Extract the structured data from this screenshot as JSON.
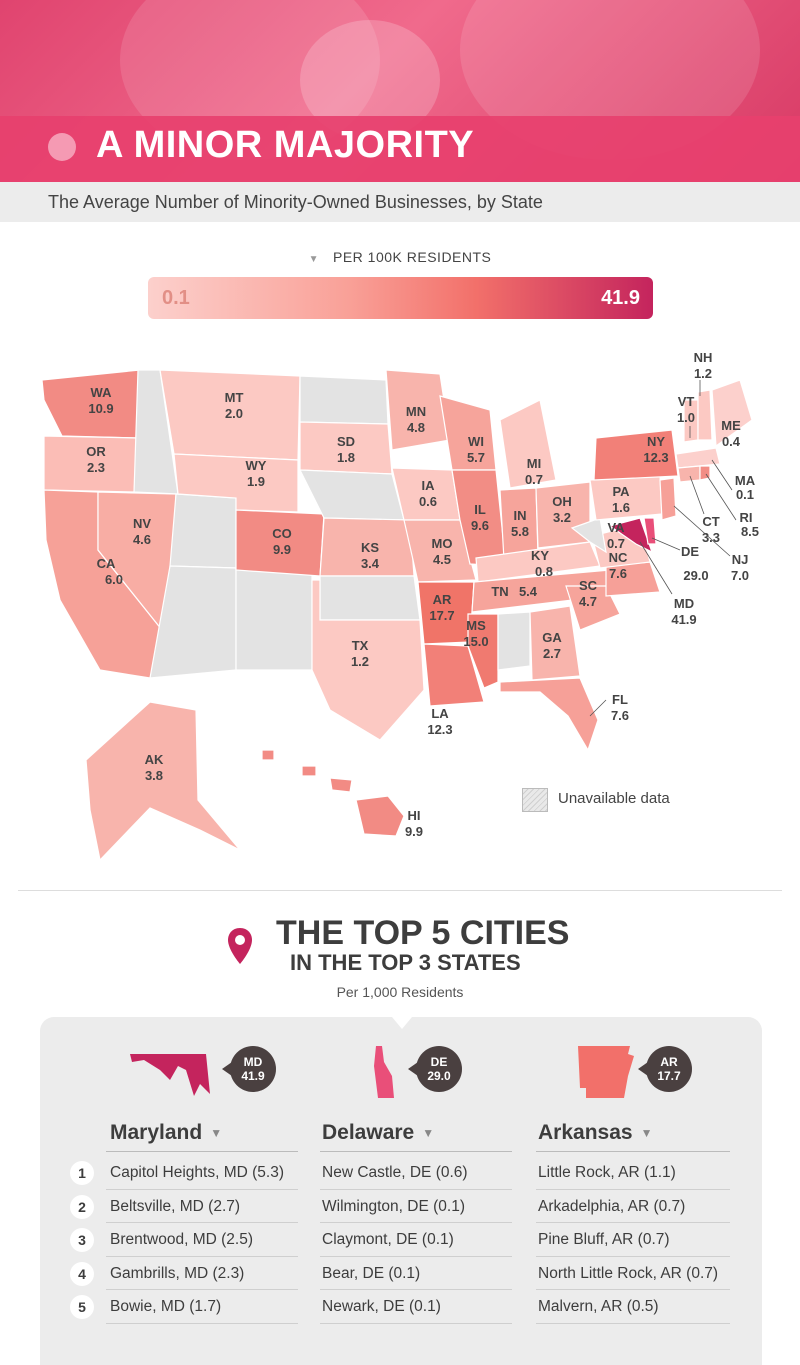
{
  "header": {
    "title": "A MINOR MAJORITY",
    "subtitle": "The Average Number of Minority-Owned Businesses, by State"
  },
  "legend": {
    "label": "PER 100K RESIDENTS",
    "min": "0.1",
    "max": "41.9",
    "colors": {
      "low": "#fcd0cc",
      "mid": "#f2706a",
      "high": "#c4245d"
    },
    "unavailable": "Unavailable data"
  },
  "states": [
    {
      "abbr": "WA",
      "value": "10.9"
    },
    {
      "abbr": "OR",
      "value": "2.3"
    },
    {
      "abbr": "CA",
      "value": "6.0"
    },
    {
      "abbr": "NV",
      "value": "4.6"
    },
    {
      "abbr": "MT",
      "value": "2.0"
    },
    {
      "abbr": "WY",
      "value": "1.9"
    },
    {
      "abbr": "CO",
      "value": "9.9"
    },
    {
      "abbr": "SD",
      "value": "1.8"
    },
    {
      "abbr": "KS",
      "value": "3.4"
    },
    {
      "abbr": "TX",
      "value": "1.2"
    },
    {
      "abbr": "MN",
      "value": "4.8"
    },
    {
      "abbr": "IA",
      "value": "0.6"
    },
    {
      "abbr": "MO",
      "value": "4.5"
    },
    {
      "abbr": "AR",
      "value": "17.7"
    },
    {
      "abbr": "LA",
      "value": "12.3"
    },
    {
      "abbr": "MS",
      "value": "15.0"
    },
    {
      "abbr": "WI",
      "value": "5.7"
    },
    {
      "abbr": "IL",
      "value": "9.6"
    },
    {
      "abbr": "MI",
      "value": "0.7"
    },
    {
      "abbr": "IN",
      "value": "5.8"
    },
    {
      "abbr": "OH",
      "value": "3.2"
    },
    {
      "abbr": "KY",
      "value": "0.8"
    },
    {
      "abbr": "TN",
      "value": "5.4"
    },
    {
      "abbr": "GA",
      "value": "2.7"
    },
    {
      "abbr": "FL",
      "value": "7.6"
    },
    {
      "abbr": "SC",
      "value": "4.7"
    },
    {
      "abbr": "NC",
      "value": "7.6"
    },
    {
      "abbr": "VA",
      "value": "0.7"
    },
    {
      "abbr": "PA",
      "value": "1.6"
    },
    {
      "abbr": "NY",
      "value": "12.3"
    },
    {
      "abbr": "NH",
      "value": "1.2"
    },
    {
      "abbr": "VT",
      "value": "1.0"
    },
    {
      "abbr": "ME",
      "value": "0.4"
    },
    {
      "abbr": "MA",
      "value": "0.1"
    },
    {
      "abbr": "RI",
      "value": "8.5"
    },
    {
      "abbr": "CT",
      "value": "3.3"
    },
    {
      "abbr": "NJ",
      "value": "7.0"
    },
    {
      "abbr": "DE",
      "value": "29.0"
    },
    {
      "abbr": "MD",
      "value": "41.9"
    },
    {
      "abbr": "AK",
      "value": "3.8"
    },
    {
      "abbr": "HI",
      "value": "9.9"
    }
  ],
  "top": {
    "title": "THE TOP 5 CITIES",
    "subtitle": "IN THE TOP 3 STATES",
    "unit": "Per 1,000 Residents",
    "ranks": [
      "1",
      "2",
      "3",
      "4",
      "5"
    ],
    "columns": [
      {
        "state": "Maryland",
        "abbr": "MD",
        "value": "41.9",
        "color": "#c4245d",
        "cities": [
          "Capitol Heights, MD (5.3)",
          "Beltsville, MD (2.7)",
          "Brentwood, MD (2.5)",
          "Gambrills, MD (2.3)",
          "Bowie, MD (1.7)"
        ]
      },
      {
        "state": "Delaware",
        "abbr": "DE",
        "value": "29.0",
        "color": "#e94f79",
        "cities": [
          "New Castle, DE (0.6)",
          "Wilmington, DE (0.1)",
          "Claymont, DE (0.1)",
          "Bear, DE (0.1)",
          "Newark, DE (0.1)"
        ]
      },
      {
        "state": "Arkansas",
        "abbr": "AR",
        "value": "17.7",
        "color": "#f2706a",
        "cities": [
          "Little Rock, AR (1.1)",
          "Arkadelphia, AR (0.7)",
          "Pine Bluff, AR (0.7)",
          "North Little Rock, AR (0.7)",
          "Malvern, AR (0.5)"
        ]
      }
    ]
  }
}
